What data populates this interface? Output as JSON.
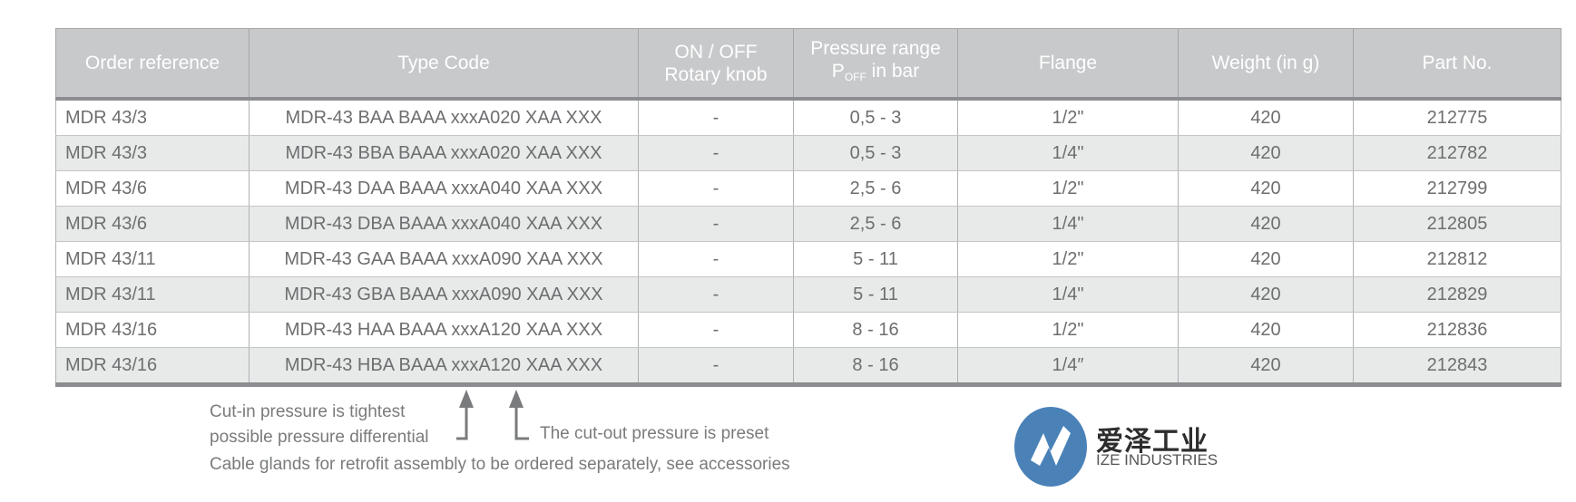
{
  "table": {
    "headers": [
      "Order reference",
      "Type Code",
      "ON / OFF",
      "Rotary knob",
      "Pressure range",
      "P",
      "OFF",
      "in bar",
      "Flange",
      "Weight (in g)",
      "Part No."
    ],
    "rows": [
      [
        "MDR 43/3",
        "MDR-43 BAA BAAA xxxA020 XAA XXX",
        "-",
        "0,5 - 3",
        "1/2\"",
        "420",
        "212775"
      ],
      [
        "MDR 43/3",
        "MDR-43 BBA BAAA xxxA020 XAA XXX",
        "-",
        "0,5 - 3",
        "1/4\"",
        "420",
        "212782"
      ],
      [
        "MDR 43/6",
        "MDR-43 DAA BAAA xxxA040 XAA XXX",
        "-",
        "2,5 - 6",
        "1/2\"",
        "420",
        "212799"
      ],
      [
        "MDR 43/6",
        "MDR-43 DBA BAAA xxxA040 XAA XXX",
        "-",
        "2,5 - 6",
        "1/4\"",
        "420",
        "212805"
      ],
      [
        "MDR 43/11",
        "MDR-43 GAA BAAA xxxA090 XAA XXX",
        "-",
        "5 - 11",
        "1/2\"",
        "420",
        "212812"
      ],
      [
        "MDR 43/11",
        "MDR-43 GBA BAAA xxxA090 XAA XXX",
        "-",
        "5 - 11",
        "1/4\"",
        "420",
        "212829"
      ],
      [
        "MDR 43/16",
        "MDR-43 HAA BAAA xxxA120 XAA XXX",
        "-",
        "8 - 16",
        "1/2\"",
        "420",
        "212836"
      ],
      [
        "MDR 43/16",
        "MDR-43 HBA BAAA xxxA120 XAA XXX",
        "-",
        "8 - 16",
        "1/4″",
        "420",
        "212843"
      ]
    ]
  },
  "notes": {
    "cut_in_line1": "Cut-in pressure is tightest",
    "cut_in_line2": "possible pressure differential",
    "cut_out": "The cut-out pressure is preset",
    "cable": "Cable glands for retrofit assembly to be ordered separately, see accessories"
  },
  "logo": {
    "cn": "爱泽工业",
    "en": "IZE INDUSTRIES",
    "color": "#4a82b8"
  },
  "colors": {
    "header_bg": "#c8c9cb",
    "alt_row": "#e8e9e9",
    "text": "#6d6e70"
  }
}
